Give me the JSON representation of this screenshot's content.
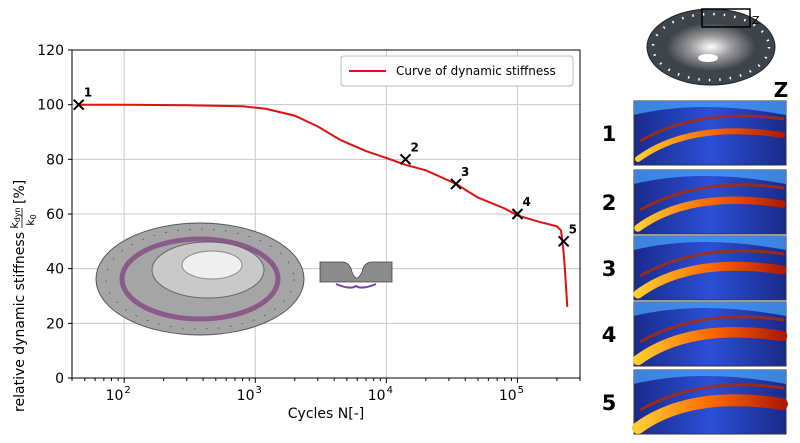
{
  "chart_data": {
    "type": "line",
    "xscale": "log",
    "xlim": [
      40,
      300000
    ],
    "ylim": [
      0,
      120
    ],
    "grid": true,
    "xlabel": "Cycles N[-]",
    "ylabel": "relative dynamic stiffness",
    "ylabel_ratio_num": "k",
    "ylabel_ratio_num_sub": "dyn",
    "ylabel_ratio_den": "k",
    "ylabel_ratio_den_sub": "0",
    "ylabel_unit": "[%]",
    "legend_position": "top-right",
    "x_tick_labels": [
      {
        "base": "10",
        "exp": "2",
        "value": 100
      },
      {
        "base": "10",
        "exp": "3",
        "value": 1000
      },
      {
        "base": "10",
        "exp": "4",
        "value": 10000
      },
      {
        "base": "10",
        "exp": "5",
        "value": 100000
      }
    ],
    "y_ticks": [
      0,
      20,
      40,
      60,
      80,
      100,
      120
    ],
    "series": [
      {
        "name": "Curve of dynamic stiffness",
        "color": "#dd1111",
        "x": [
          45,
          100,
          300,
          800,
          1200,
          2000,
          3000,
          4500,
          7000,
          10000,
          14000,
          20000,
          34000,
          50000,
          80000,
          100000,
          150000,
          200000,
          215000,
          220000,
          225000,
          230000,
          235000,
          240000
        ],
        "y": [
          100,
          100,
          99.8,
          99.4,
          98.5,
          96,
          92,
          87,
          83,
          80.5,
          78,
          76,
          71,
          66,
          62,
          59.5,
          57,
          55.5,
          54,
          50,
          46,
          40,
          33,
          26
        ]
      }
    ],
    "markers": [
      {
        "label": "1",
        "x": 45,
        "y": 100
      },
      {
        "label": "2",
        "x": 14000,
        "y": 80
      },
      {
        "label": "3",
        "x": 34000,
        "y": 71
      },
      {
        "label": "4",
        "x": 100000,
        "y": 60
      },
      {
        "label": "5",
        "x": 225000,
        "y": 50
      }
    ]
  },
  "thermal_panels": {
    "title": "Z",
    "inset_label": "Z",
    "labels": [
      "1",
      "2",
      "3",
      "4",
      "5"
    ]
  }
}
